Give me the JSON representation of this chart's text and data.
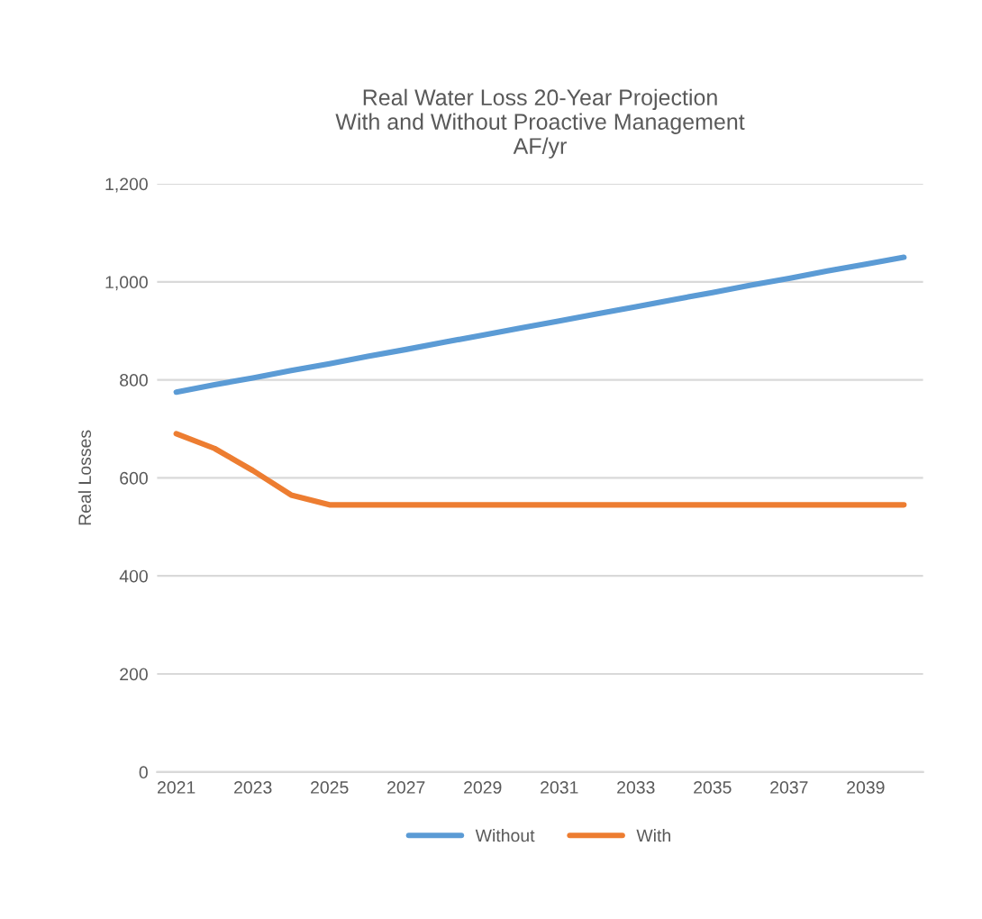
{
  "chart_data": {
    "type": "line",
    "title": "Real Water Loss 20-Year Projection\nWith and Without Proactive Management\nAF/yr",
    "ylabel": "Real Losses",
    "categories": [
      "2021",
      null,
      "2023",
      null,
      "2025",
      null,
      "2027",
      null,
      "2029",
      null,
      "2031",
      null,
      "2033",
      null,
      "2035",
      null,
      "2037",
      null,
      "2039",
      null
    ],
    "series": [
      {
        "name": "Without",
        "color": "#5b9bd5",
        "values": [
          775,
          790,
          804,
          819,
          833,
          848,
          862,
          877,
          891,
          906,
          920,
          935,
          949,
          964,
          978,
          993,
          1007,
          1022,
          1036,
          1050
        ]
      },
      {
        "name": "With",
        "color": "#ed7d31",
        "values": [
          690,
          660,
          615,
          565,
          545,
          545,
          545,
          545,
          545,
          545,
          545,
          545,
          545,
          545,
          545,
          545,
          545,
          545,
          545,
          545
        ]
      }
    ],
    "ylim": [
      0,
      1200
    ],
    "yticks": [
      0,
      {
        "value": 200,
        "label": "200"
      },
      {
        "value": 400,
        "label": "400"
      },
      {
        "value": 600,
        "label": "600"
      },
      {
        "value": 800,
        "label": "800"
      },
      {
        "value": 1000,
        "label": "1,000"
      },
      {
        "value": 1200,
        "label": "1,200"
      }
    ],
    "grid": "y",
    "legend": "bottom",
    "marker": "none",
    "line_style": "solid"
  }
}
